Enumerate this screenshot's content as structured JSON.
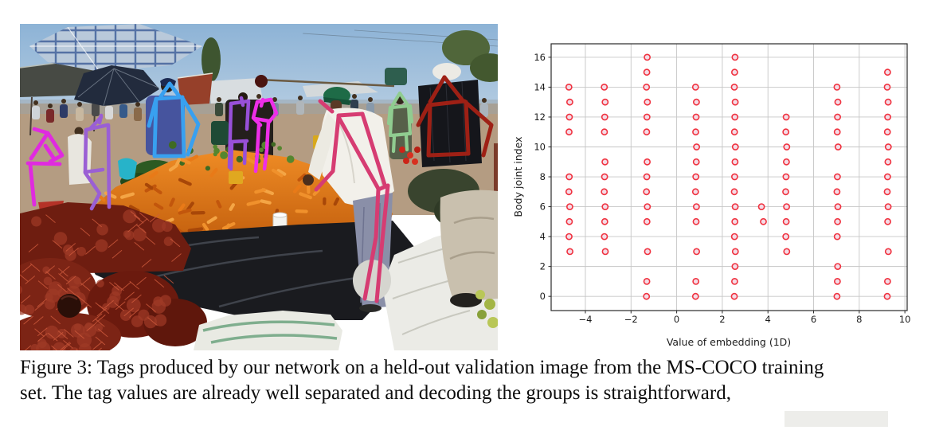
{
  "figure": {
    "caption_lines": [
      "Figure 3: Tags produced by our network on a held-out validation image from the MS-COCO training",
      "set. The tag values are already well separated and decoding the groups is straightforward,"
    ]
  },
  "photo": {
    "alt": "Crowded outdoor produce market: large pile of carrots, red mesh sacks of onions, white sacks, plaid and dark umbrellas, shade canopies; colored body-pose skeletons drawn over eight people",
    "skeleton_colors": {
      "magenta": "#e02ae0",
      "purple": "#9a5fd4",
      "blue": "#38a0f0",
      "violet": "#9850d8",
      "bright_magenta": "#ee2ee8",
      "crimson": "#d63c72",
      "light_green": "#90cc90",
      "dark_red": "#9e2015"
    },
    "skeletons": [
      {
        "name": "crouching-person-far-left",
        "color": "#e02ae0",
        "width": 4.8,
        "lines": [
          [
            [
              18,
              132
            ],
            [
              35,
              137
            ]
          ],
          [
            [
              35,
              137
            ],
            [
              14,
              169
            ]
          ],
          [
            [
              10,
              175
            ],
            [
              50,
              176
            ]
          ],
          [
            [
              35,
              137
            ],
            [
              53,
              165
            ],
            [
              38,
              173
            ]
          ],
          [
            [
              32,
              153
            ],
            [
              42,
              168
            ]
          ],
          [
            [
              13,
              177
            ],
            [
              18,
              227
            ]
          ]
        ]
      },
      {
        "name": "standing-person-left",
        "color": "#9a5fd4",
        "width": 4.6,
        "lines": [
          [
            [
              102,
              117
            ],
            [
              88,
              132
            ]
          ],
          [
            [
              102,
              115
            ],
            [
              100,
              124
            ]
          ],
          [
            [
              83,
              133
            ],
            [
              110,
              127
            ]
          ],
          [
            [
              83,
              133
            ],
            [
              82,
              186
            ]
          ],
          [
            [
              111,
              127
            ],
            [
              112,
              230
            ]
          ],
          [
            [
              82,
              186
            ],
            [
              104,
              183
            ]
          ],
          [
            [
              82,
              187
            ],
            [
              100,
              213
            ],
            [
              90,
              232
            ]
          ]
        ]
      },
      {
        "name": "blue-jacket-person",
        "color": "#38a0f0",
        "width": 4.8,
        "lines": [
          [
            [
              188,
              75
            ],
            [
              177,
              91
            ]
          ],
          [
            [
              188,
              75
            ],
            [
              201,
              92
            ]
          ],
          [
            [
              172,
              94
            ],
            [
              204,
              92
            ]
          ],
          [
            [
              171,
              94
            ],
            [
              162,
              128
            ]
          ],
          [
            [
              171,
              94
            ],
            [
              169,
              166
            ]
          ],
          [
            [
              204,
              92
            ],
            [
              206,
              166
            ]
          ],
          [
            [
              169,
              166
            ],
            [
              206,
              166
            ]
          ],
          [
            [
              204,
              93
            ],
            [
              224,
              126
            ],
            [
              211,
              164
            ]
          ]
        ]
      },
      {
        "name": "violet-person-center",
        "color": "#9850d8",
        "width": 4.5,
        "lines": [
          [
            [
              278,
              93
            ],
            [
              280,
              102
            ]
          ],
          [
            [
              265,
              100
            ],
            [
              287,
              97
            ]
          ],
          [
            [
              265,
              100
            ],
            [
              263,
              180
            ]
          ],
          [
            [
              287,
              97
            ],
            [
              285,
              132
            ]
          ],
          [
            [
              265,
              148
            ],
            [
              285,
              147
            ]
          ],
          [
            [
              266,
              150
            ],
            [
              265,
              182
            ]
          ],
          [
            [
              283,
              148
            ],
            [
              282,
              175
            ]
          ]
        ]
      },
      {
        "name": "magenta-person-center",
        "color": "#ee2ee8",
        "width": 4.5,
        "lines": [
          [
            [
              305,
              95
            ],
            [
              303,
              103
            ]
          ],
          [
            [
              298,
              98
            ],
            [
              315,
              95
            ]
          ],
          [
            [
              298,
              98
            ],
            [
              293,
              118
            ],
            [
              302,
              127
            ]
          ],
          [
            [
              315,
              95
            ],
            [
              322,
              112
            ],
            [
              313,
              123
            ]
          ],
          [
            [
              313,
              122
            ],
            [
              295,
              119
            ]
          ],
          [
            [
              300,
              127
            ],
            [
              298,
              162
            ],
            [
              296,
              185
            ]
          ],
          [
            [
              312,
              123
            ],
            [
              310,
              158
            ],
            [
              307,
              182
            ]
          ]
        ]
      },
      {
        "name": "bending-man-white-shirt",
        "color": "#d63c72",
        "width": 5,
        "lines": [
          [
            [
              377,
              97
            ],
            [
              392,
              110
            ]
          ],
          [
            [
              400,
              115
            ],
            [
              430,
              113
            ]
          ],
          [
            [
              400,
              117
            ],
            [
              393,
              185
            ],
            [
              372,
              208
            ]
          ],
          [
            [
              430,
              113
            ],
            [
              458,
              202
            ]
          ],
          [
            [
              400,
              117
            ],
            [
              450,
              207
            ]
          ],
          [
            [
              450,
              208
            ],
            [
              462,
              203
            ]
          ],
          [
            [
              450,
              208
            ],
            [
              447,
              268
            ],
            [
              433,
              345
            ]
          ],
          [
            [
              462,
              203
            ],
            [
              455,
              272
            ],
            [
              448,
              348
            ]
          ]
        ]
      },
      {
        "name": "green-person-background",
        "color": "#90cc90",
        "width": 4.2,
        "lines": [
          [
            [
              477,
              87
            ],
            [
              468,
              102
            ]
          ],
          [
            [
              477,
              87
            ],
            [
              487,
              102
            ]
          ],
          [
            [
              467,
              105
            ],
            [
              488,
              103
            ]
          ],
          [
            [
              467,
              105
            ],
            [
              465,
              140
            ]
          ],
          [
            [
              488,
              103
            ],
            [
              490,
              138
            ]
          ],
          [
            [
              467,
              140
            ],
            [
              488,
              138
            ]
          ],
          [
            [
              470,
              142
            ],
            [
              469,
              160
            ]
          ],
          [
            [
              485,
              140
            ],
            [
              486,
              158
            ]
          ],
          [
            [
              465,
              105
            ],
            [
              463,
              125
            ]
          ],
          [
            [
              490,
              103
            ],
            [
              492,
              123
            ]
          ]
        ]
      },
      {
        "name": "dark-red-person-right",
        "color": "#9e2015",
        "width": 5,
        "lines": [
          [
            [
              533,
              67
            ],
            [
              515,
              98
            ]
          ],
          [
            [
              533,
              67
            ],
            [
              555,
              95
            ]
          ],
          [
            [
              513,
              102
            ],
            [
              558,
              97
            ]
          ],
          [
            [
              513,
              102
            ],
            [
              500,
              127
            ]
          ],
          [
            [
              558,
              97
            ],
            [
              592,
              127
            ],
            [
              582,
              165
            ]
          ],
          [
            [
              515,
              103
            ],
            [
              513,
              165
            ]
          ],
          [
            [
              560,
              98
            ],
            [
              563,
              163
            ]
          ],
          [
            [
              513,
              165
            ],
            [
              563,
              163
            ]
          ]
        ]
      }
    ]
  },
  "chart_data": {
    "type": "scatter",
    "title": "",
    "xlabel": "Value of embedding (1D)",
    "ylabel": "Body joint index",
    "xlim": [
      -5.5,
      10.1
    ],
    "ylim": [
      -0.95,
      16.9
    ],
    "xticks": [
      -4,
      -2,
      0,
      2,
      4,
      6,
      8,
      10
    ],
    "yticks": [
      0,
      2,
      4,
      6,
      8,
      10,
      12,
      14,
      16
    ],
    "grid": true,
    "legend": null,
    "marker": {
      "shape": "circle",
      "edge_color": "#f0323f",
      "face_color": "#f4dbe6",
      "radius": 3.6,
      "edge_width": 1.6
    },
    "series": [
      {
        "name": "person-tag-1",
        "x": -4.7,
        "joints": [
          3,
          4,
          5,
          6,
          7,
          8,
          11,
          12,
          13,
          14
        ]
      },
      {
        "name": "person-tag-2",
        "x": -3.15,
        "joints": [
          3,
          4,
          5,
          6,
          7,
          8,
          9,
          11,
          12,
          13,
          14
        ]
      },
      {
        "name": "person-tag-3",
        "x": -1.3,
        "joints": [
          0,
          1,
          3,
          5,
          6,
          7,
          8,
          9,
          11,
          12,
          13,
          14,
          15,
          16
        ]
      },
      {
        "name": "person-tag-4",
        "x": 0.85,
        "joints": [
          0,
          1,
          3,
          5,
          6,
          7,
          8,
          9,
          10,
          11,
          12,
          13,
          14
        ]
      },
      {
        "name": "person-tag-5",
        "x": 2.55,
        "joints": [
          0,
          1,
          2,
          3,
          4,
          5,
          6,
          7,
          8,
          9,
          10,
          11,
          12,
          13,
          14,
          15,
          16
        ]
      },
      {
        "name": "stray-tag-a",
        "x": 3.7,
        "joints": [
          6
        ]
      },
      {
        "name": "stray-tag-b",
        "x": 3.8,
        "joints": [
          5
        ]
      },
      {
        "name": "person-tag-6",
        "x": 4.8,
        "joints": [
          3,
          4,
          5,
          6,
          7,
          8,
          9,
          10,
          11,
          12
        ]
      },
      {
        "name": "person-tag-7",
        "x": 7.05,
        "joints": [
          0,
          1,
          2,
          4,
          5,
          6,
          7,
          8,
          10,
          11,
          12,
          13,
          14
        ]
      },
      {
        "name": "person-tag-8",
        "x": 9.25,
        "joints": [
          0,
          1,
          3,
          5,
          6,
          7,
          8,
          9,
          10,
          11,
          12,
          13,
          14,
          15
        ]
      }
    ]
  }
}
